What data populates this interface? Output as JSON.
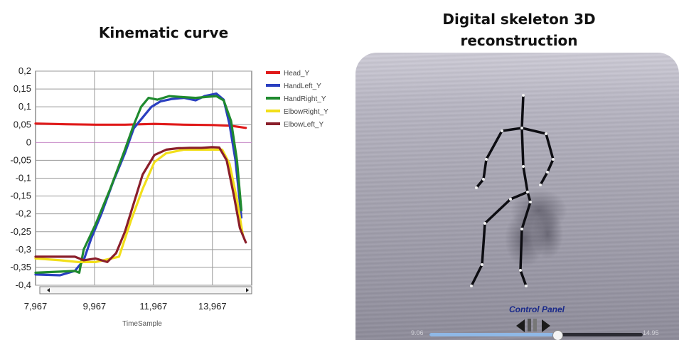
{
  "headings": {
    "left": "Kinematic curve",
    "right_line1": "Digital skeleton 3D",
    "right_line2": "reconstruction"
  },
  "chart_data": {
    "type": "line",
    "title": "",
    "xlabel": "TimeSample",
    "ylabel": "",
    "xlim": [
      7.967,
      15.3
    ],
    "ylim": [
      -0.4,
      0.2
    ],
    "x_ticks": [
      {
        "value": 7.967,
        "label": "7,967"
      },
      {
        "value": 9.967,
        "label": "9,967"
      },
      {
        "value": 11.967,
        "label": "11,967"
      },
      {
        "value": 13.967,
        "label": "13,967"
      }
    ],
    "y_ticks": [
      {
        "value": 0.2,
        "label": "0,2"
      },
      {
        "value": 0.15,
        "label": "0,15"
      },
      {
        "value": 0.1,
        "label": "0,1"
      },
      {
        "value": 0.05,
        "label": "0,05"
      },
      {
        "value": 0,
        "label": "0"
      },
      {
        "value": -0.05,
        "label": "-0,05"
      },
      {
        "value": -0.1,
        "label": "-0,1"
      },
      {
        "value": -0.15,
        "label": "-0,15"
      },
      {
        "value": -0.2,
        "label": "-0,2"
      },
      {
        "value": -0.25,
        "label": "-0,25"
      },
      {
        "value": -0.3,
        "label": "-0,3"
      },
      {
        "value": -0.35,
        "label": "-0,35"
      },
      {
        "value": -0.4,
        "label": "-0,4"
      }
    ],
    "grid": true,
    "legend_position": "right",
    "series": [
      {
        "name": "Head_Y",
        "color": "#e01a1a",
        "points": [
          [
            7.967,
            0.053
          ],
          [
            9.0,
            0.051
          ],
          [
            10.0,
            0.05
          ],
          [
            11.0,
            0.05
          ],
          [
            12.0,
            0.052
          ],
          [
            13.0,
            0.05
          ],
          [
            14.0,
            0.049
          ],
          [
            14.6,
            0.047
          ],
          [
            15.1,
            0.041
          ]
        ]
      },
      {
        "name": "HandLeft_Y",
        "color": "#2a3fc0",
        "points": [
          [
            7.967,
            -0.37
          ],
          [
            8.8,
            -0.372
          ],
          [
            9.3,
            -0.36
          ],
          [
            9.6,
            -0.33
          ],
          [
            9.85,
            -0.27
          ],
          [
            10.2,
            -0.2
          ],
          [
            10.6,
            -0.11
          ],
          [
            11.0,
            -0.03
          ],
          [
            11.3,
            0.04
          ],
          [
            11.6,
            0.07
          ],
          [
            11.9,
            0.1
          ],
          [
            12.2,
            0.115
          ],
          [
            12.6,
            0.122
          ],
          [
            13.0,
            0.125
          ],
          [
            13.4,
            0.118
          ],
          [
            13.7,
            0.13
          ],
          [
            14.1,
            0.137
          ],
          [
            14.35,
            0.12
          ],
          [
            14.55,
            0.05
          ],
          [
            14.75,
            -0.05
          ],
          [
            14.95,
            -0.21
          ]
        ]
      },
      {
        "name": "HandRight_Y",
        "color": "#1f8a2e",
        "points": [
          [
            7.967,
            -0.365
          ],
          [
            8.8,
            -0.362
          ],
          [
            9.3,
            -0.36
          ],
          [
            9.45,
            -0.365
          ],
          [
            9.6,
            -0.3
          ],
          [
            10.0,
            -0.23
          ],
          [
            10.5,
            -0.13
          ],
          [
            11.0,
            -0.02
          ],
          [
            11.3,
            0.05
          ],
          [
            11.55,
            0.1
          ],
          [
            11.8,
            0.125
          ],
          [
            12.1,
            0.12
          ],
          [
            12.5,
            0.13
          ],
          [
            13.0,
            0.127
          ],
          [
            13.4,
            0.125
          ],
          [
            13.8,
            0.128
          ],
          [
            14.1,
            0.13
          ],
          [
            14.35,
            0.118
          ],
          [
            14.6,
            0.06
          ],
          [
            14.8,
            -0.05
          ],
          [
            14.95,
            -0.19
          ]
        ]
      },
      {
        "name": "ElbowRight_Y",
        "color": "#f2df1a",
        "points": [
          [
            7.967,
            -0.325
          ],
          [
            8.8,
            -0.33
          ],
          [
            9.4,
            -0.335
          ],
          [
            10.0,
            -0.335
          ],
          [
            10.8,
            -0.32
          ],
          [
            11.2,
            -0.22
          ],
          [
            11.6,
            -0.13
          ],
          [
            12.0,
            -0.055
          ],
          [
            12.4,
            -0.03
          ],
          [
            13.0,
            -0.02
          ],
          [
            13.5,
            -0.02
          ],
          [
            14.0,
            -0.02
          ],
          [
            14.3,
            -0.02
          ],
          [
            14.55,
            -0.06
          ],
          [
            14.8,
            -0.16
          ],
          [
            15.0,
            -0.26
          ]
        ]
      },
      {
        "name": "ElbowLeft_Y",
        "color": "#8a1e2a",
        "points": [
          [
            7.967,
            -0.32
          ],
          [
            8.8,
            -0.32
          ],
          [
            9.3,
            -0.32
          ],
          [
            9.6,
            -0.33
          ],
          [
            10.0,
            -0.325
          ],
          [
            10.4,
            -0.335
          ],
          [
            10.7,
            -0.31
          ],
          [
            11.0,
            -0.25
          ],
          [
            11.3,
            -0.17
          ],
          [
            11.6,
            -0.09
          ],
          [
            12.0,
            -0.035
          ],
          [
            12.4,
            -0.02
          ],
          [
            12.8,
            -0.016
          ],
          [
            13.2,
            -0.015
          ],
          [
            13.6,
            -0.015
          ],
          [
            13.95,
            -0.013
          ],
          [
            14.2,
            -0.014
          ],
          [
            14.45,
            -0.05
          ],
          [
            14.7,
            -0.15
          ],
          [
            14.9,
            -0.24
          ],
          [
            15.1,
            -0.28
          ]
        ]
      }
    ]
  },
  "control_panel": {
    "label": "Control Panel",
    "time_start": "9.06",
    "time_end": "14.95",
    "progress": 0.6
  },
  "icons": {
    "prev": "step-back-icon",
    "pause": "pause-icon",
    "next": "step-forward-icon"
  }
}
